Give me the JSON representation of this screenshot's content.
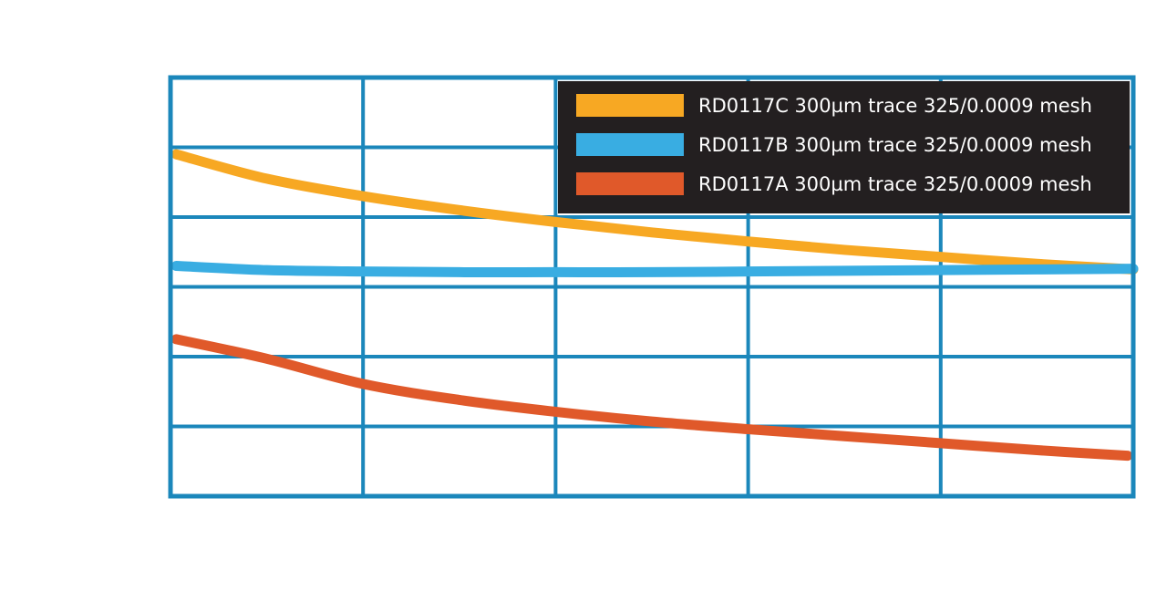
{
  "chart_data": {
    "type": "line",
    "title": "",
    "xlabel": "",
    "ylabel": "",
    "xlim": [
      0,
      5
    ],
    "ylim": [
      0,
      6
    ],
    "grid": true,
    "legend_position": "top-right",
    "colors": {
      "grid": "#1b87bb",
      "legend_bg": "#231f20",
      "legend_text": "#ffffff"
    },
    "series": [
      {
        "name": "RD0117C 300µm trace 325/0.0009 mesh",
        "color": "#f7a823",
        "x": [
          0.03,
          0.5,
          1.0,
          1.5,
          2.0,
          2.5,
          3.0,
          3.5,
          4.0,
          4.5,
          5.0
        ],
        "y": [
          4.9,
          4.55,
          4.3,
          4.1,
          3.93,
          3.78,
          3.65,
          3.53,
          3.43,
          3.33,
          3.25
        ]
      },
      {
        "name": "RD0117B 300µm trace 325/0.0009 mesh",
        "color": "#39ade2",
        "x": [
          0.03,
          0.5,
          1.0,
          1.5,
          2.0,
          2.5,
          3.0,
          3.5,
          4.0,
          4.5,
          5.0
        ],
        "y": [
          3.3,
          3.24,
          3.22,
          3.21,
          3.21,
          3.21,
          3.22,
          3.23,
          3.24,
          3.25,
          3.26
        ]
      },
      {
        "name": "RD0117A 300µm trace 325/0.0009 mesh",
        "color": "#e0592a",
        "x": [
          0.03,
          0.5,
          1.0,
          1.5,
          2.0,
          2.5,
          3.0,
          3.5,
          4.0,
          4.5,
          4.97
        ],
        "y": [
          2.25,
          1.97,
          1.61,
          1.38,
          1.21,
          1.07,
          0.96,
          0.86,
          0.76,
          0.66,
          0.58
        ]
      }
    ]
  }
}
